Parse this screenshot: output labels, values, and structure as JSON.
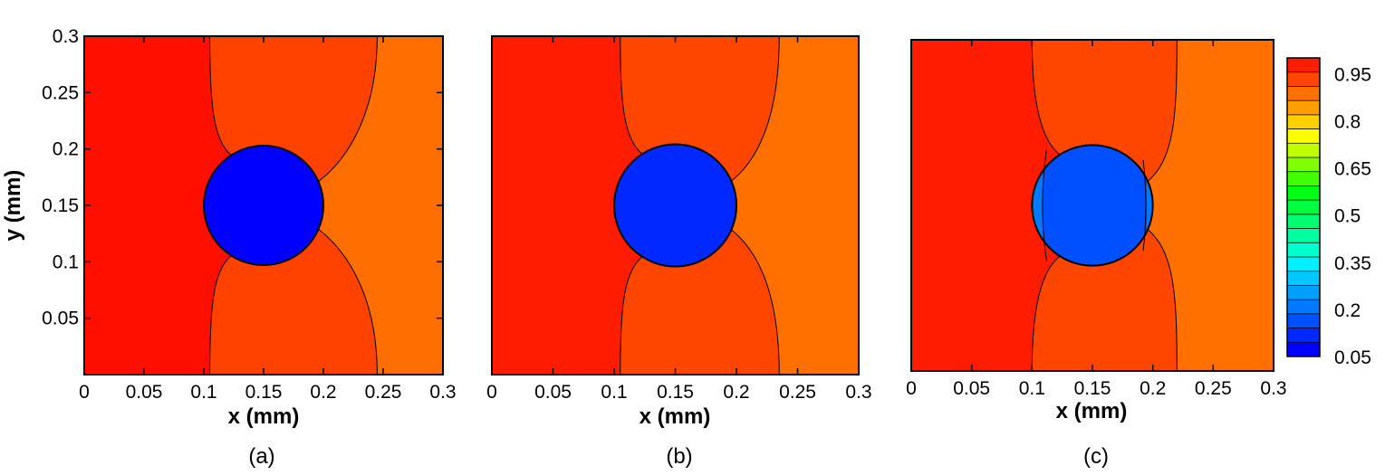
{
  "chart_data": {
    "type": "contour",
    "panels": [
      {
        "caption": "(a)",
        "xlabel": "x (mm)",
        "ylabel": "y (mm)",
        "xlim": [
          0,
          0.3
        ],
        "ylim": [
          0,
          0.3
        ],
        "xticks": [
          "0",
          "0.05",
          "0.1",
          "0.15",
          "0.2",
          "0.25",
          "0.3"
        ],
        "yticks": [
          "0.05",
          "0.1",
          "0.15",
          "0.2",
          "0.25",
          "0.3"
        ],
        "circle": {
          "center": [
            0.15,
            0.15
          ],
          "radius": 0.05,
          "value": 0.05
        },
        "regions": [
          {
            "value": 0.975,
            "color": "#ff0f00"
          },
          {
            "value": 0.935,
            "color": "#ff4200"
          },
          {
            "value": 0.905,
            "color": "#ff6e00"
          }
        ],
        "boundaries": {
          "left_x": 0.105,
          "right_x": 0.245
        }
      },
      {
        "caption": "(b)",
        "xlabel": "x (mm)",
        "ylabel": "",
        "xlim": [
          0,
          0.3
        ],
        "ylim": [
          0,
          0.3
        ],
        "xticks": [
          "0",
          "0.05",
          "0.1",
          "0.15",
          "0.2",
          "0.25",
          "0.3"
        ],
        "yticks": [],
        "circle": {
          "center": [
            0.15,
            0.15
          ],
          "radius": 0.05,
          "value": 0.14
        },
        "regions": [
          {
            "value": 0.975,
            "color": "#ff1c00"
          },
          {
            "value": 0.935,
            "color": "#ff4600"
          },
          {
            "value": 0.905,
            "color": "#ff7000"
          }
        ],
        "boundaries": {
          "left_x": 0.105,
          "right_x": 0.235
        }
      },
      {
        "caption": "(c)",
        "xlabel": "x (mm)",
        "ylabel": "",
        "xlim": [
          0,
          0.3
        ],
        "ylim": [
          0,
          0.3
        ],
        "xticks": [
          "0",
          "0.05",
          "0.1",
          "0.15",
          "0.2",
          "0.25",
          "0.3"
        ],
        "yticks": [],
        "circle": {
          "center": [
            0.15,
            0.15
          ],
          "radius": 0.05,
          "value": 0.18,
          "rim_value": 0.22
        },
        "regions": [
          {
            "value": 0.975,
            "color": "#ff1c00"
          },
          {
            "value": 0.935,
            "color": "#ff4600"
          },
          {
            "value": 0.905,
            "color": "#ff7000"
          }
        ],
        "boundaries": {
          "left_x": 0.1,
          "right_x": 0.22
        }
      }
    ],
    "colorbar": {
      "range": [
        0.05,
        1.0
      ],
      "labels": [
        "0.95",
        "0.8",
        "0.65",
        "0.5",
        "0.35",
        "0.2",
        "0.05"
      ],
      "label_values": [
        0.95,
        0.8,
        0.65,
        0.5,
        0.35,
        0.2,
        0.05
      ],
      "bands": [
        "#0000ff",
        "#0028ff",
        "#0050ff",
        "#0078ff",
        "#00a0ff",
        "#00c8ff",
        "#00f0ff",
        "#00ffd0",
        "#00ffa0",
        "#00ff70",
        "#00ff40",
        "#00ff10",
        "#40ff00",
        "#80ff00",
        "#c0ff00",
        "#ffff00",
        "#ffd000",
        "#ffa000",
        "#ff7000",
        "#ff4600",
        "#ff1c00"
      ]
    }
  }
}
